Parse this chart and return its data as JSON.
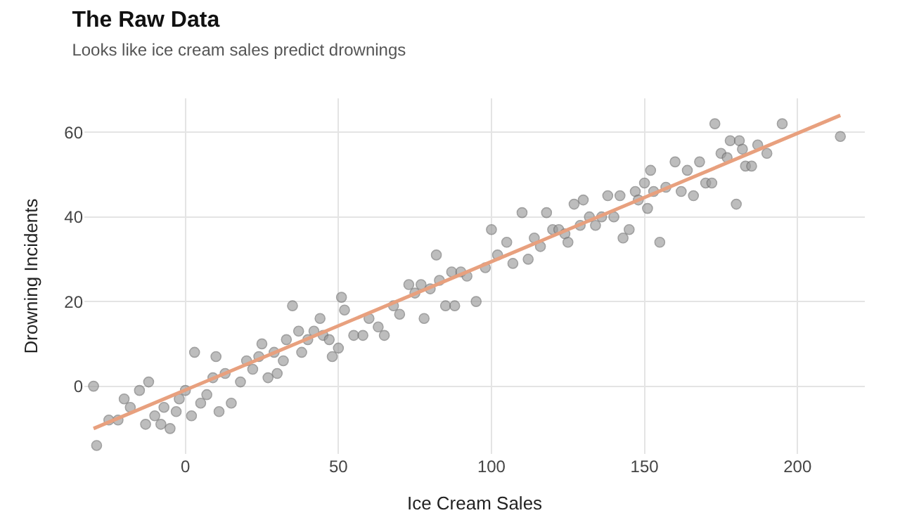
{
  "chart_data": {
    "type": "scatter",
    "title": "The Raw Data",
    "subtitle": "Looks like ice cream sales predict drownings",
    "xlabel": "Ice Cream Sales",
    "ylabel": "Drowning Incidents",
    "xlim": [
      -33,
      222
    ],
    "ylim": [
      -16,
      68
    ],
    "xticks": [
      0,
      50,
      100,
      150,
      200
    ],
    "yticks": [
      0,
      20,
      40,
      60
    ],
    "grid": true,
    "legend": false,
    "series": [
      {
        "marker": "circle",
        "color": "#9a9a9a",
        "x": [
          -30,
          -29,
          -25,
          -22,
          -20,
          -18,
          -15,
          -13,
          -12,
          -10,
          -8,
          -7,
          -5,
          -3,
          -2,
          0,
          2,
          3,
          5,
          7,
          9,
          10,
          11,
          13,
          15,
          18,
          20,
          22,
          24,
          25,
          27,
          29,
          30,
          32,
          33,
          35,
          37,
          38,
          40,
          42,
          44,
          45,
          47,
          48,
          50,
          51,
          52,
          55,
          58,
          60,
          63,
          65,
          68,
          70,
          73,
          75,
          77,
          78,
          80,
          82,
          83,
          85,
          87,
          88,
          90,
          92,
          95,
          98,
          100,
          102,
          105,
          107,
          110,
          112,
          114,
          116,
          118,
          120,
          122,
          124,
          125,
          127,
          129,
          130,
          132,
          134,
          136,
          138,
          140,
          142,
          143,
          145,
          147,
          148,
          150,
          151,
          152,
          153,
          155,
          157,
          160,
          162,
          164,
          166,
          168,
          170,
          172,
          173,
          175,
          177,
          178,
          180,
          181,
          182,
          183,
          185,
          187,
          190,
          195,
          214
        ],
        "values": [
          0,
          -14,
          -8,
          -8,
          -3,
          -5,
          -1,
          -9,
          1,
          -7,
          -9,
          -5,
          -10,
          -6,
          -3,
          -1,
          -7,
          8,
          -4,
          -2,
          2,
          7,
          -6,
          3,
          -4,
          1,
          6,
          4,
          7,
          10,
          2,
          8,
          3,
          6,
          11,
          19,
          13,
          8,
          11,
          13,
          16,
          12,
          11,
          7,
          9,
          21,
          18,
          12,
          12,
          16,
          14,
          12,
          19,
          17,
          24,
          22,
          24,
          16,
          23,
          31,
          25,
          19,
          27,
          19,
          27,
          26,
          20,
          28,
          37,
          31,
          34,
          29,
          41,
          30,
          35,
          33,
          41,
          37,
          37,
          36,
          34,
          43,
          38,
          44,
          40,
          38,
          40,
          45,
          40,
          45,
          35,
          37,
          46,
          44,
          48,
          42,
          51,
          46,
          34,
          47,
          53,
          46,
          51,
          45,
          53,
          48,
          48,
          62,
          55,
          54,
          58,
          43,
          58,
          56,
          52,
          52,
          57,
          55,
          62,
          59
        ]
      },
      {
        "type": "line",
        "marker": "none",
        "line_style": "solid",
        "color": "#e8a07e",
        "x": [
          -30,
          214
        ],
        "values": [
          -10,
          64
        ]
      }
    ]
  }
}
